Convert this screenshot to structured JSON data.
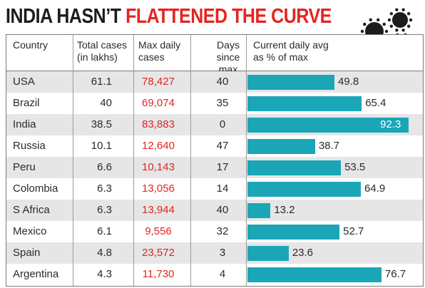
{
  "headline": {
    "part1": "INDIA HASN’T ",
    "part2": "FLATTENED THE CURVE"
  },
  "columns": {
    "country": "Country",
    "total": "Total cases\n(in lakhs)",
    "max_daily": "Max daily\ncases",
    "days": "Days\nsince max",
    "current": "Current daily avg\nas % of max"
  },
  "colors": {
    "accent_red": "#e42421",
    "bar": "#1aa6b7",
    "stripe": "#e6e6e6"
  },
  "icons": [
    "coronavirus-icon"
  ],
  "chart_data": {
    "type": "table",
    "title": "INDIA HASN’T FLATTENED THE CURVE",
    "columns": [
      "Country",
      "Total cases (in lakhs)",
      "Max daily cases",
      "Days since max",
      "Current daily avg as % of max"
    ],
    "rows": [
      {
        "country": "USA",
        "total": "61.1",
        "max_daily": "78,427",
        "days": "40",
        "pct": 49.8,
        "pct_label": "49.8"
      },
      {
        "country": "Brazil",
        "total": "40",
        "max_daily": "69,074",
        "days": "35",
        "pct": 65.4,
        "pct_label": "65.4"
      },
      {
        "country": "India",
        "total": "38.5",
        "max_daily": "83,883",
        "days": "0",
        "pct": 92.3,
        "pct_label": "92.3"
      },
      {
        "country": "Russia",
        "total": "10.1",
        "max_daily": "12,640",
        "days": "47",
        "pct": 38.7,
        "pct_label": "38.7"
      },
      {
        "country": "Peru",
        "total": "6.6",
        "max_daily": "10,143",
        "days": "17",
        "pct": 53.5,
        "pct_label": "53.5"
      },
      {
        "country": "Colombia",
        "total": "6.3",
        "max_daily": "13,056",
        "days": "14",
        "pct": 64.9,
        "pct_label": "64.9"
      },
      {
        "country": "S Africa",
        "total": "6.3",
        "max_daily": "13,944",
        "days": "40",
        "pct": 13.2,
        "pct_label": "13.2"
      },
      {
        "country": "Mexico",
        "total": "6.1",
        "max_daily": "9,556",
        "days": "32",
        "pct": 52.7,
        "pct_label": "52.7"
      },
      {
        "country": "Spain",
        "total": "4.8",
        "max_daily": "23,572",
        "days": "3",
        "pct": 23.6,
        "pct_label": "23.6"
      },
      {
        "country": "Argentina",
        "total": "4.3",
        "max_daily": "11,730",
        "days": "4",
        "pct": 76.7,
        "pct_label": "76.7"
      }
    ]
  }
}
